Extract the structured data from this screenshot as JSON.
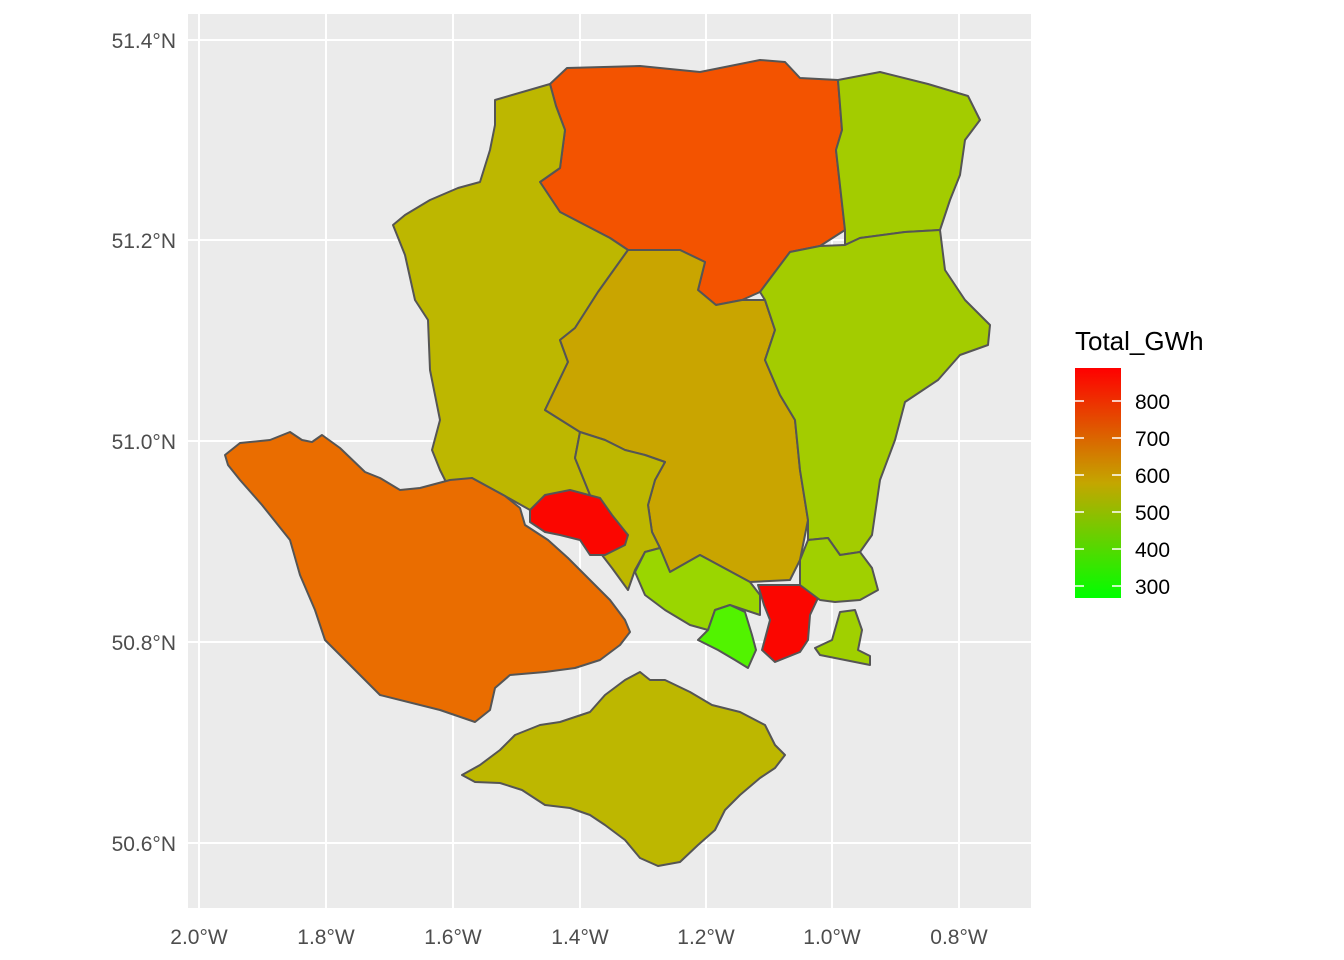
{
  "map": {
    "x_ticks": [
      "2.0°W",
      "1.8°W",
      "1.6°W",
      "1.4°W",
      "1.2°W",
      "1.0°W",
      "0.8°W"
    ],
    "y_ticks": [
      "51.4°N",
      "51.2°N",
      "51.0°N",
      "50.8°N",
      "50.6°N"
    ],
    "panel_background": "#ebebeb",
    "grid_color": "#ffffff"
  },
  "legend": {
    "title": "Total_GWh",
    "labels": [
      "800",
      "700",
      "600",
      "500",
      "400",
      "300"
    ],
    "gradient": {
      "low": "#00ff00",
      "high": "#ff0000"
    },
    "range": [
      270,
      890
    ]
  },
  "chart_data": {
    "type": "choropleth",
    "variable": "Total_GWh",
    "lon_ticks": [
      -2.0,
      -1.8,
      -1.6,
      -1.4,
      -1.2,
      -1.0,
      -0.8
    ],
    "lat_ticks": [
      51.4,
      51.2,
      51.0,
      50.8,
      50.6
    ],
    "regions_approx_value": [
      {
        "value": 830,
        "color": "#f35300"
      },
      {
        "value": 470,
        "color": "#a3cc00"
      },
      {
        "value": 545,
        "color": "#bdb700"
      },
      {
        "value": 585,
        "color": "#c9a500"
      },
      {
        "value": 465,
        "color": "#a3cc00"
      },
      {
        "value": 720,
        "color": "#ea6d00"
      },
      {
        "value": 530,
        "color": "#bdb700"
      },
      {
        "value": 890,
        "color": "#fb0600"
      },
      {
        "value": 445,
        "color": "#9ad600"
      },
      {
        "value": 300,
        "color": "#52f300"
      },
      {
        "value": 890,
        "color": "#fb0600"
      },
      {
        "value": 440,
        "color": "#a0d000"
      },
      {
        "value": 540,
        "color": "#bdb700"
      }
    ]
  }
}
